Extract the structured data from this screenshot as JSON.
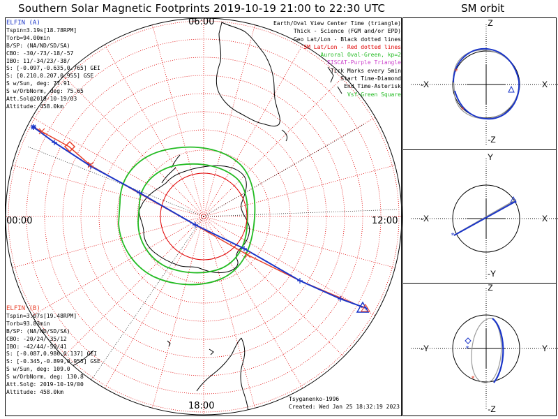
{
  "title": "Southern Solar Magnetic Footprints 2019-10-19 21:00 to 22:30 UTC",
  "orbit_panel_title": "SM orbit",
  "elfin_a": {
    "header": "ELFIN (A)",
    "color": "#1a35c8",
    "lines": [
      "Tspin=3.19s[18.78RPM]",
      "Torb=94.00min",
      "B/SP: (NA/ND/SD/SA)",
      "CBO: -30/-73/-18/-57",
      "IBO: 11/-34/23/-38/",
      "S: [-0.097,-0.635,0.765] GEI",
      "S: [0.210,0.207,0.955] GSE",
      "S w/Sun, deg: 77.91",
      "S w/OrbNorm, deg: 75.65",
      "Att.Sol@2019-10-19/03",
      "Altitude: 458.0km"
    ]
  },
  "elfin_b": {
    "header": "ELFIN (B)",
    "color": "#e8402a",
    "lines": [
      "Tspin=3.07s[19.48RPM]",
      "Torb=93.83min",
      "B/SP: (NA/ND/SD/SA)",
      "CBO: -20/24/-35/12",
      "IBO: -42/44/-59/41",
      "S: [-0.087,0.986,0.137] GEI",
      "S: [-0.345,-0.899,0.955] GSE",
      "S w/Sun, deg: 109.0",
      "S w/OrbNorm, deg: 130.8",
      "Att.Sol@: 2019-10-19/00",
      "Altitude: 458.0km"
    ]
  },
  "legend": [
    {
      "text": "Earth/Oval View Center Time (triangle)",
      "color": "#000000"
    },
    {
      "text": "Thick - Science (FGM and/or EPD)",
      "color": "#000000"
    },
    {
      "text": "Geo Lat/Lon - Black dotted lines",
      "color": "#000000"
    },
    {
      "text": "SM Lat/Lon - Red dotted lines",
      "color": "#e00000"
    },
    {
      "text": "Auroral Oval-Green, kp=2",
      "color": "#22bb22"
    },
    {
      "text": "EISCAT-Purple Triangle",
      "color": "#cc44cc"
    },
    {
      "text": "Tick Marks every 5min",
      "color": "#000000"
    },
    {
      "text": "Start Time-Diamond",
      "color": "#000000"
    },
    {
      "text": "End Time-Asterisk",
      "color": "#000000"
    },
    {
      "text": "Vsf-Green Square",
      "color": "#22bb22"
    }
  ],
  "footer": {
    "model": "Tsyganenko-1996",
    "created": "Created: Wed Jan 25 18:32:19 2023"
  },
  "mlt_labels": {
    "top": "06:00",
    "left": "00:00",
    "right": "12:00",
    "bottom": "18:00"
  },
  "orbit_panels": [
    {
      "name": "xz-panel",
      "top": "Z",
      "bottom": "-Z",
      "left": "-X",
      "right": "X"
    },
    {
      "name": "xy-panel",
      "top": "Y",
      "bottom": "-Y",
      "left": "-X",
      "right": "X"
    },
    {
      "name": "yz-panel",
      "top": "Z",
      "bottom": "-Z",
      "left": "-Y",
      "right": "Y"
    }
  ],
  "chart_data": {
    "type": "scatter",
    "title": "Southern Solar Magnetic Footprints 2019-10-19 21:00 to 22:30 UTC",
    "projection": "south polar stereographic, SM coordinates",
    "grid": true,
    "series": [
      {
        "name": "ELFIN (A)",
        "color": "#1a35c8"
      },
      {
        "name": "ELFIN (B)",
        "color": "#e8402a"
      }
    ]
  }
}
